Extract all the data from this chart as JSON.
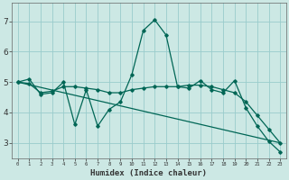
{
  "xlabel": "Humidex (Indice chaleur)",
  "bg_color": "#cce8e4",
  "grid_color": "#99cccc",
  "line_color": "#006655",
  "xlim": [
    -0.5,
    23.5
  ],
  "ylim": [
    2.5,
    7.6
  ],
  "yticks": [
    3,
    4,
    5,
    6,
    7
  ],
  "xtick_labels": [
    "0",
    "1",
    "2",
    "3",
    "4",
    "5",
    "6",
    "7",
    "8",
    "9",
    "10",
    "11",
    "12",
    "13",
    "14",
    "15",
    "16",
    "17",
    "18",
    "19",
    "20",
    "21",
    "22",
    "23"
  ],
  "series1_x": [
    0,
    1,
    2,
    3,
    4,
    5,
    6,
    7,
    8,
    9,
    10,
    11,
    12,
    13,
    14,
    15,
    16,
    17,
    18,
    19,
    20,
    21,
    22,
    23
  ],
  "series1_y": [
    5.0,
    5.1,
    4.6,
    4.65,
    5.0,
    3.6,
    4.75,
    3.55,
    4.1,
    4.35,
    5.25,
    6.7,
    7.05,
    6.55,
    4.85,
    4.8,
    5.05,
    4.75,
    4.65,
    5.05,
    4.15,
    3.55,
    3.05,
    2.7
  ],
  "series2_x": [
    0,
    1,
    2,
    3,
    4,
    5,
    6,
    7,
    8,
    9,
    10,
    11,
    12,
    13,
    14,
    15,
    16,
    17,
    18,
    19,
    20,
    21,
    22,
    23
  ],
  "series2_y": [
    5.0,
    4.95,
    4.65,
    4.7,
    4.85,
    4.85,
    4.8,
    4.75,
    4.65,
    4.65,
    4.75,
    4.8,
    4.85,
    4.85,
    4.85,
    4.9,
    4.9,
    4.85,
    4.75,
    4.65,
    4.35,
    3.9,
    3.45,
    3.0
  ],
  "series3_x": [
    0,
    23
  ],
  "series3_y": [
    5.0,
    3.0
  ]
}
